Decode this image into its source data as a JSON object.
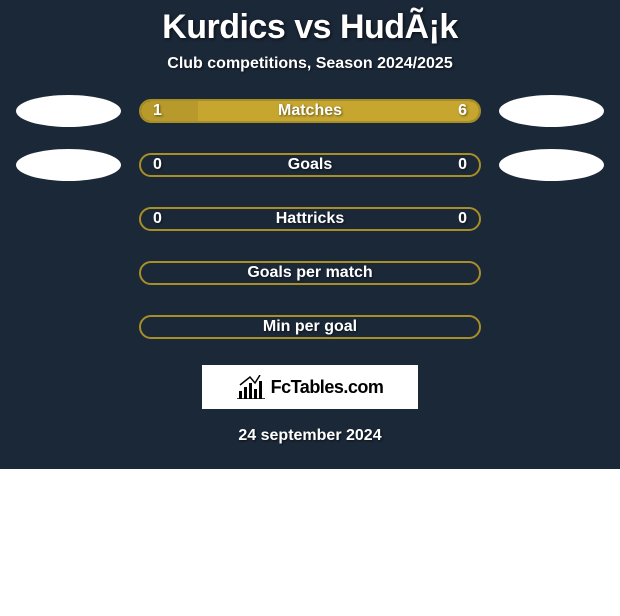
{
  "title": "Kurdics vs HudÃ¡k",
  "subtitle": "Club competitions, Season 2024/2025",
  "date": "24 september 2024",
  "brand": "FcTables.com",
  "colors": {
    "bg_dark": "#1b2838",
    "olive_border": "#a88e28",
    "olive_fill": "#b79a2b",
    "olive_bright": "#c6a62f",
    "white": "#ffffff"
  },
  "stats": [
    {
      "label": "Matches",
      "left_val": "1",
      "right_val": "6",
      "left_pct": 17,
      "right_pct": 83,
      "left_color": "#b79a2b",
      "right_color": "#c6a62f",
      "border": "#a88e28",
      "show_ovals": true
    },
    {
      "label": "Goals",
      "left_val": "0",
      "right_val": "0",
      "left_pct": 0,
      "right_pct": 0,
      "left_color": "#b79a2b",
      "right_color": "#c6a62f",
      "border": "#a88e28",
      "show_ovals": true
    },
    {
      "label": "Hattricks",
      "left_val": "0",
      "right_val": "0",
      "left_pct": 0,
      "right_pct": 0,
      "left_color": "#b79a2b",
      "right_color": "#c6a62f",
      "border": "#a88e28",
      "show_ovals": false
    },
    {
      "label": "Goals per match",
      "left_val": "",
      "right_val": "",
      "left_pct": 0,
      "right_pct": 0,
      "left_color": "#b79a2b",
      "right_color": "#c6a62f",
      "border": "#a88e28",
      "show_ovals": false
    },
    {
      "label": "Min per goal",
      "left_val": "",
      "right_val": "",
      "left_pct": 0,
      "right_pct": 0,
      "left_color": "#b79a2b",
      "right_color": "#c6a62f",
      "border": "#a88e28",
      "show_ovals": false
    }
  ]
}
